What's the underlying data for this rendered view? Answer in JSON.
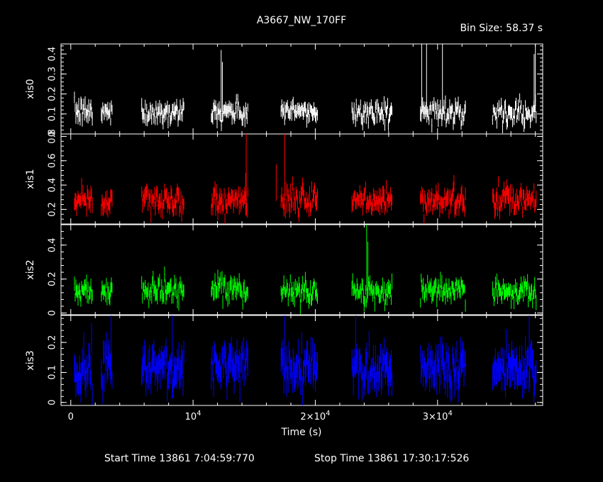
{
  "colors": {
    "background": "#000000",
    "axes": "#ffffff",
    "xis0": "#ffffff",
    "xis1": "#ff0000",
    "xis2": "#00ff00",
    "xis3": "#0000ff"
  },
  "chart_data": {
    "type": "line",
    "title": "A3667_NW_170FF",
    "bin_size_label": "Bin Size: 58.37 s",
    "xlabel": "Time (s)",
    "xlim": [
      -800,
      38600
    ],
    "xticks": [
      {
        "value": 0,
        "label": "0",
        "exp": ""
      },
      {
        "value": 10000,
        "label": "10",
        "exp": "4"
      },
      {
        "value": 20000,
        "label": "2×10",
        "exp": "4"
      },
      {
        "value": 30000,
        "label": "3×10",
        "exp": "4"
      }
    ],
    "footer": {
      "start": "Start Time 13861  7:04:59:770",
      "stop": "Stop Time 13861 17:30:17:526"
    },
    "gti": [
      [
        300,
        1800
      ],
      [
        2500,
        3400
      ],
      [
        5800,
        9300
      ],
      [
        11500,
        14500
      ],
      [
        17200,
        20200
      ],
      [
        23000,
        26300
      ],
      [
        28600,
        32300
      ],
      [
        34500,
        38100
      ]
    ],
    "panels": [
      {
        "name": "xis0",
        "ylim": [
          0,
          0.45
        ],
        "yticks": [
          0,
          0.1,
          0.2,
          0.3,
          0.4
        ],
        "yticklabels": [
          "0",
          "0.1",
          "0.2",
          "0.3",
          "0.4"
        ],
        "ticks_overlap": true,
        "mean": 0.11,
        "sd": 0.035,
        "spikes": [
          [
            12300,
            0.42
          ],
          [
            12400,
            0.36
          ],
          [
            28700,
            0.45
          ],
          [
            29100,
            0.45
          ],
          [
            30400,
            0.45
          ],
          [
            38000,
            0.45
          ],
          [
            37900,
            0.4
          ]
        ]
      },
      {
        "name": "xis1",
        "ylim": [
          0.08,
          0.82
        ],
        "yticks": [
          0.2,
          0.4,
          0.6,
          0.8
        ],
        "yticklabels": [
          "0.2",
          "0.4",
          "0.6",
          "0.8"
        ],
        "ticks_overlap": false,
        "mean": 0.27,
        "sd": 0.07,
        "spikes": [
          [
            14350,
            0.82
          ],
          [
            17500,
            0.82
          ],
          [
            16800,
            0.57
          ],
          [
            14300,
            0.5
          ]
        ]
      },
      {
        "name": "xis2",
        "ylim": [
          -0.01,
          0.52
        ],
        "yticks": [
          0,
          0.2,
          0.4
        ],
        "yticklabels": [
          "0",
          "0.2",
          "0.4"
        ],
        "ticks_overlap": false,
        "mean": 0.13,
        "sd": 0.045,
        "spikes": [
          [
            24200,
            0.52
          ],
          [
            24300,
            0.42
          ]
        ]
      },
      {
        "name": "xis3",
        "ylim": [
          -0.01,
          0.29
        ],
        "yticks": [
          0,
          0.1,
          0.2
        ],
        "yticklabels": [
          "0",
          "0.1",
          "0.2"
        ],
        "ticks_overlap": false,
        "mean": 0.12,
        "sd": 0.05,
        "spikes": [
          [
            3300,
            0.29
          ],
          [
            8300,
            0.29
          ],
          [
            17500,
            0.29
          ],
          [
            23300,
            0.29
          ],
          [
            37500,
            0.29
          ]
        ]
      }
    ]
  }
}
